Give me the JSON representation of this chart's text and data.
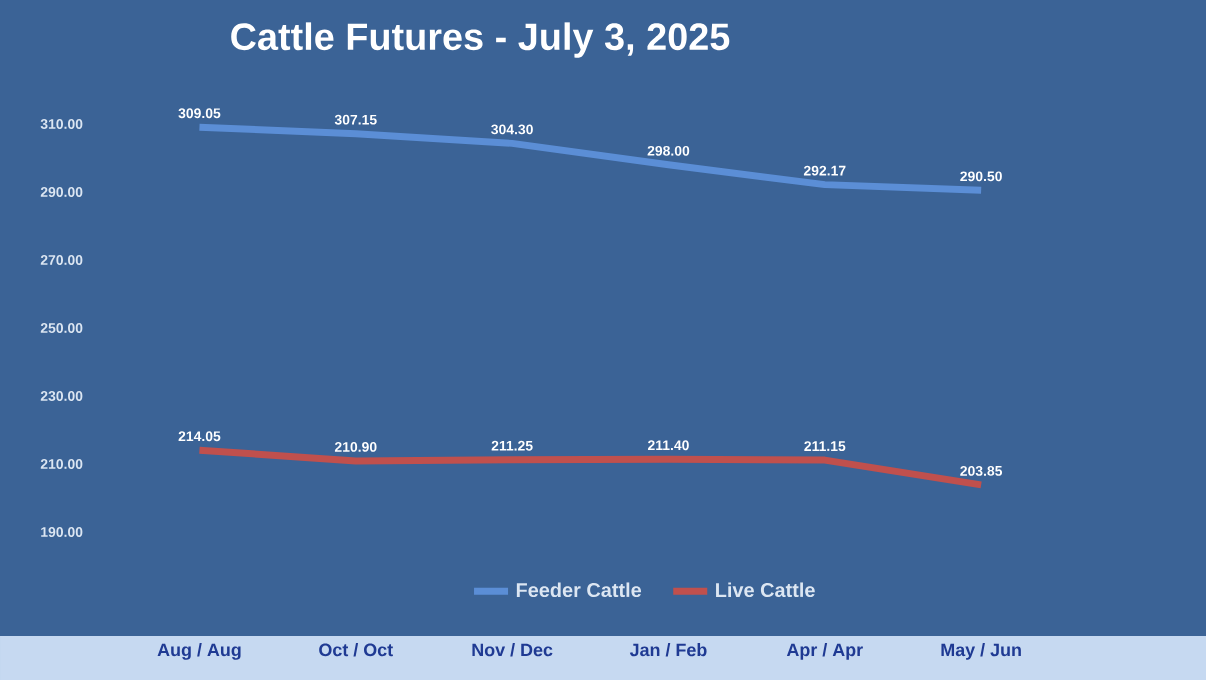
{
  "chart_data": {
    "type": "line",
    "title": "Cattle Futures - July 3, 2025",
    "categories": [
      "Aug / Aug",
      "Oct / Oct",
      "Nov / Dec",
      "Jan / Feb",
      "Apr / Apr",
      "May / Jun"
    ],
    "series": [
      {
        "name": "Feeder Cattle",
        "color": "#5b8ed6",
        "values": [
          309.05,
          307.15,
          304.3,
          298.0,
          292.17,
          290.5
        ],
        "value_labels": [
          "309.05",
          "307.15",
          "304.30",
          "298.00",
          "292.17",
          "290.50"
        ]
      },
      {
        "name": "Live Cattle",
        "color": "#c0504d",
        "values": [
          214.05,
          210.9,
          211.25,
          211.4,
          211.15,
          203.85
        ],
        "value_labels": [
          "214.05",
          "210.90",
          "211.25",
          "211.40",
          "211.15",
          "203.85"
        ]
      }
    ],
    "ylim": [
      190,
      310
    ],
    "yticks": [
      {
        "value": 190,
        "label": "190.00"
      },
      {
        "value": 210,
        "label": "210.00"
      },
      {
        "value": 230,
        "label": "230.00"
      },
      {
        "value": 250,
        "label": "250.00"
      },
      {
        "value": 270,
        "label": "270.00"
      },
      {
        "value": 290,
        "label": "290.00"
      },
      {
        "value": 310,
        "label": "310.00"
      }
    ],
    "grid": false,
    "legend": "bottom",
    "marker": "none",
    "line_style": "solid"
  }
}
